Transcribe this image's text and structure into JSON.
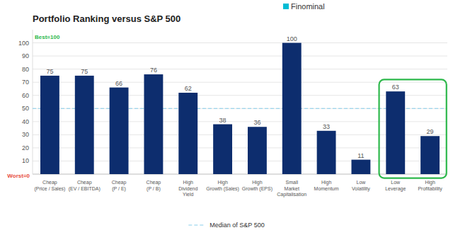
{
  "chart_data": {
    "type": "bar",
    "title": "Portfolio Ranking versus S&P 500",
    "categories": [
      "Cheap\n(Price / Sales)",
      "Cheap\n(EV / EBITDA)",
      "Cheap\n(P / E)",
      "Cheap\n(P / B)",
      "High\nDividend\nYield",
      "High\nGrowth (Sales)",
      "High\nGrowth (EPS)",
      "Small\nMarket\nCapitalisation",
      "High\nMomentum",
      "Low\nVolatility",
      "Low\nLeverage",
      "High\nProfitability"
    ],
    "values": [
      75,
      75,
      66,
      76,
      62,
      38,
      36,
      100,
      33,
      11,
      63,
      29
    ],
    "color": "#0d2d6e",
    "ylim": [
      0,
      110
    ],
    "yticks": [
      10,
      20,
      30,
      40,
      50,
      60,
      70,
      80,
      90,
      100
    ],
    "grid": true,
    "data_labels": true,
    "legend": "bottom",
    "median_line": {
      "value": 50,
      "label": "Median of S&P 500",
      "color": "#87ceeb"
    },
    "highlight": {
      "indices": [
        10,
        11
      ],
      "ymin": -3,
      "ymax": 72,
      "color": "#2db84b"
    },
    "annotations": [
      {
        "text": "Best=100",
        "y": 102,
        "color": "#2db84b"
      },
      {
        "text": "Worst=0",
        "y": -0.5,
        "color": "#e74c3c"
      }
    ],
    "logo": {
      "text": "Finominal",
      "color": "#333333",
      "icon_color": "#00bcd4"
    }
  }
}
